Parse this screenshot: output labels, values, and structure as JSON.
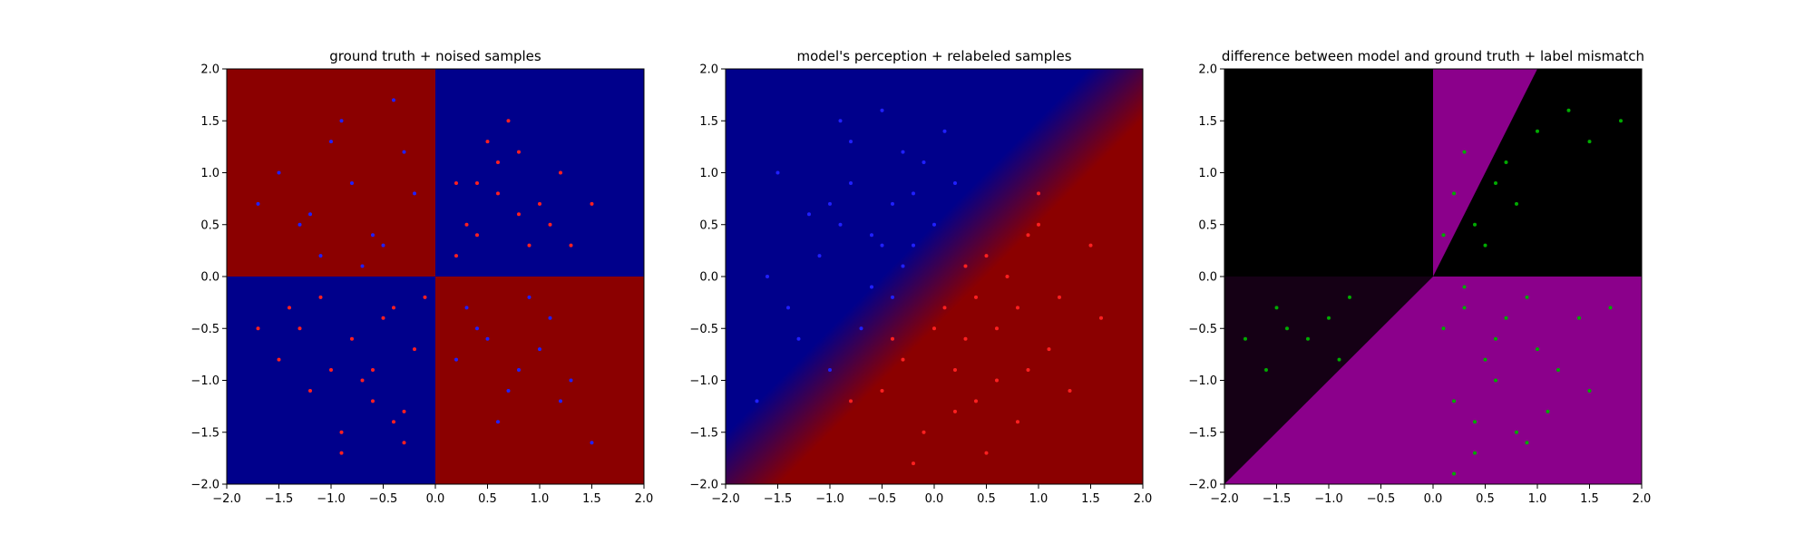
{
  "chart_data": [
    {
      "type": "scatter",
      "title": "ground truth + noised samples",
      "xlim": [
        -2.0,
        2.0
      ],
      "ylim": [
        -2.0,
        2.0
      ],
      "x_ticks": [
        "−2.0",
        "−1.5",
        "−1.0",
        "−0.5",
        "0.0",
        "0.5",
        "1.0",
        "1.5",
        "2.0"
      ],
      "y_ticks": [
        "−2.0",
        "−1.5",
        "−1.0",
        "−0.5",
        "0.0",
        "0.5",
        "1.0",
        "1.5",
        "2.0"
      ],
      "grid": false,
      "background": {
        "kind": "quadrant-xor",
        "positive_color": "#00008b",
        "negative_color": "#8b0000"
      },
      "series": [
        {
          "color": "#ff2020",
          "marker_size": 2,
          "x": [
            -1.3,
            -1.0,
            -0.6,
            -0.4,
            -0.9,
            -1.1,
            -0.2,
            -0.7,
            -1.5,
            -0.3,
            0.3,
            0.6,
            0.9,
            1.2,
            0.5,
            0.8,
            0.2,
            0.4,
            1.0,
            0.7,
            -0.5,
            -0.8,
            -1.2,
            -0.3,
            -1.4,
            -0.6,
            -0.1,
            -1.7,
            -0.9,
            -0.4,
            0.4,
            1.1,
            0.6,
            1.5,
            0.2,
            0.8,
            1.3
          ],
          "y": [
            -0.5,
            -0.9,
            -1.2,
            -0.3,
            -1.5,
            -0.2,
            -0.7,
            -1.0,
            -0.8,
            -1.6,
            0.5,
            0.8,
            0.3,
            1.0,
            1.3,
            0.6,
            0.2,
            0.9,
            0.7,
            1.5,
            -0.4,
            -0.6,
            -1.1,
            -1.3,
            -0.3,
            -0.9,
            -0.2,
            -0.5,
            -1.7,
            -1.4,
            0.4,
            0.5,
            1.1,
            0.7,
            0.9,
            1.2,
            0.3
          ]
        },
        {
          "color": "#2020ff",
          "marker_size": 2,
          "x": [
            -1.2,
            -0.8,
            -0.5,
            -0.3,
            -1.5,
            -0.9,
            -0.6,
            -1.7,
            -0.2,
            -1.1,
            0.4,
            0.8,
            1.2,
            0.3,
            0.6,
            1.0,
            1.5,
            0.2,
            0.9,
            1.3,
            -1.0,
            -0.4,
            -1.3,
            -0.7,
            0.5,
            0.7,
            1.1
          ],
          "y": [
            0.6,
            0.9,
            0.3,
            1.2,
            1.0,
            1.5,
            0.4,
            0.7,
            0.8,
            0.2,
            -0.5,
            -0.9,
            -1.2,
            -0.3,
            -1.4,
            -0.7,
            -1.6,
            -0.8,
            -0.2,
            -1.0,
            1.3,
            1.7,
            0.5,
            0.1,
            -0.6,
            -1.1,
            -0.4
          ]
        }
      ]
    },
    {
      "type": "scatter",
      "title": "model's perception + relabeled samples",
      "xlim": [
        -2.0,
        2.0
      ],
      "ylim": [
        -2.0,
        2.0
      ],
      "x_ticks": [
        "−2.0",
        "−1.5",
        "−1.0",
        "−0.5",
        "0.0",
        "0.5",
        "1.0",
        "1.5",
        "2.0"
      ],
      "y_ticks": [
        "−2.0",
        "−1.5",
        "−1.0",
        "−0.5",
        "0.0",
        "0.5",
        "1.0",
        "1.5",
        "2.0"
      ],
      "grid": false,
      "background": {
        "kind": "diagonal-boundary",
        "upper_color": "#00008b",
        "lower_color": "#8b0000",
        "boundary_slope": 1.0
      },
      "series": [
        {
          "color": "#ff2020",
          "marker_size": 2,
          "x": [
            0.5,
            0.8,
            1.0,
            0.3,
            0.6,
            1.2,
            0.0,
            -0.3,
            0.2,
            0.9,
            1.5,
            0.4,
            -0.5,
            0.7,
            1.1,
            0.1,
            -0.1,
            0.8,
            1.3,
            0.5,
            -0.8,
            -0.4,
            0.3,
            1.6,
            0.6,
            1.0,
            0.2,
            -0.2,
            0.9,
            0.4
          ],
          "y": [
            0.2,
            -0.3,
            0.5,
            -0.6,
            -1.0,
            -0.2,
            -0.5,
            -0.8,
            -1.3,
            -0.9,
            0.3,
            -0.2,
            -1.1,
            0.0,
            -0.7,
            -0.3,
            -1.5,
            -1.4,
            -1.1,
            -1.7,
            -1.2,
            -0.6,
            0.1,
            -0.4,
            -0.5,
            0.8,
            -0.9,
            -1.8,
            0.4,
            -1.2
          ]
        },
        {
          "color": "#2020ff",
          "marker_size": 2,
          "x": [
            -1.2,
            -0.8,
            -0.5,
            -0.3,
            -1.5,
            -0.9,
            -0.6,
            -1.0,
            -0.2,
            -1.1,
            -0.4,
            -0.7,
            -1.3,
            0.0,
            -0.1,
            -1.6,
            -0.5,
            -0.8,
            -0.3,
            -1.4,
            0.2,
            -0.6,
            -1.0,
            -0.9,
            -0.2,
            -1.7,
            0.1,
            -0.4
          ],
          "y": [
            0.6,
            0.9,
            0.3,
            1.2,
            1.0,
            1.5,
            0.4,
            0.7,
            0.8,
            0.2,
            -0.2,
            -0.5,
            -0.6,
            0.5,
            1.1,
            0.0,
            1.6,
            1.3,
            0.1,
            -0.3,
            0.9,
            -0.1,
            -0.9,
            0.5,
            0.3,
            -1.2,
            1.4,
            0.7
          ]
        }
      ]
    },
    {
      "type": "scatter",
      "title": "difference between model and ground truth + label mismatch",
      "xlim": [
        -2.0,
        2.0
      ],
      "ylim": [
        -2.0,
        2.0
      ],
      "x_ticks": [
        "−2.0",
        "−1.5",
        "−1.0",
        "−0.5",
        "0.0",
        "0.5",
        "1.0",
        "1.5",
        "2.0"
      ],
      "y_ticks": [
        "−2.0",
        "−1.5",
        "−1.0",
        "−0.5",
        "0.0",
        "0.5",
        "1.0",
        "1.5",
        "2.0"
      ],
      "grid": false,
      "background": {
        "kind": "difference-map",
        "match_color": "#000000",
        "mismatch_color": "#8b008b"
      },
      "series": [
        {
          "color": "#00aa00",
          "marker_size": 2,
          "x": [
            0.2,
            0.4,
            0.6,
            0.3,
            0.8,
            0.5,
            0.1,
            0.7,
            1.0,
            1.3,
            1.5,
            1.8,
            0.3,
            0.6,
            0.9,
            1.2,
            0.2,
            0.5,
            0.8,
            1.4,
            0.4,
            1.1,
            -1.5,
            -1.2,
            -0.8,
            -1.6,
            -1.0,
            -1.4,
            -0.9,
            -1.8,
            0.1,
            0.3,
            0.6,
            1.0,
            1.5,
            0.7,
            0.4,
            0.9,
            1.7,
            0.2
          ],
          "y": [
            0.8,
            0.5,
            0.9,
            1.2,
            0.7,
            0.3,
            0.4,
            1.1,
            1.4,
            1.6,
            1.3,
            1.5,
            -0.3,
            -0.6,
            -0.2,
            -0.9,
            -1.2,
            -0.8,
            -1.5,
            -0.4,
            -1.7,
            -1.3,
            -0.3,
            -0.6,
            -0.2,
            -0.9,
            -0.4,
            -0.5,
            -0.8,
            -0.6,
            -0.5,
            -0.1,
            -1.0,
            -0.7,
            -1.1,
            -0.4,
            -1.4,
            -1.6,
            -0.3,
            -1.9
          ]
        }
      ]
    }
  ]
}
